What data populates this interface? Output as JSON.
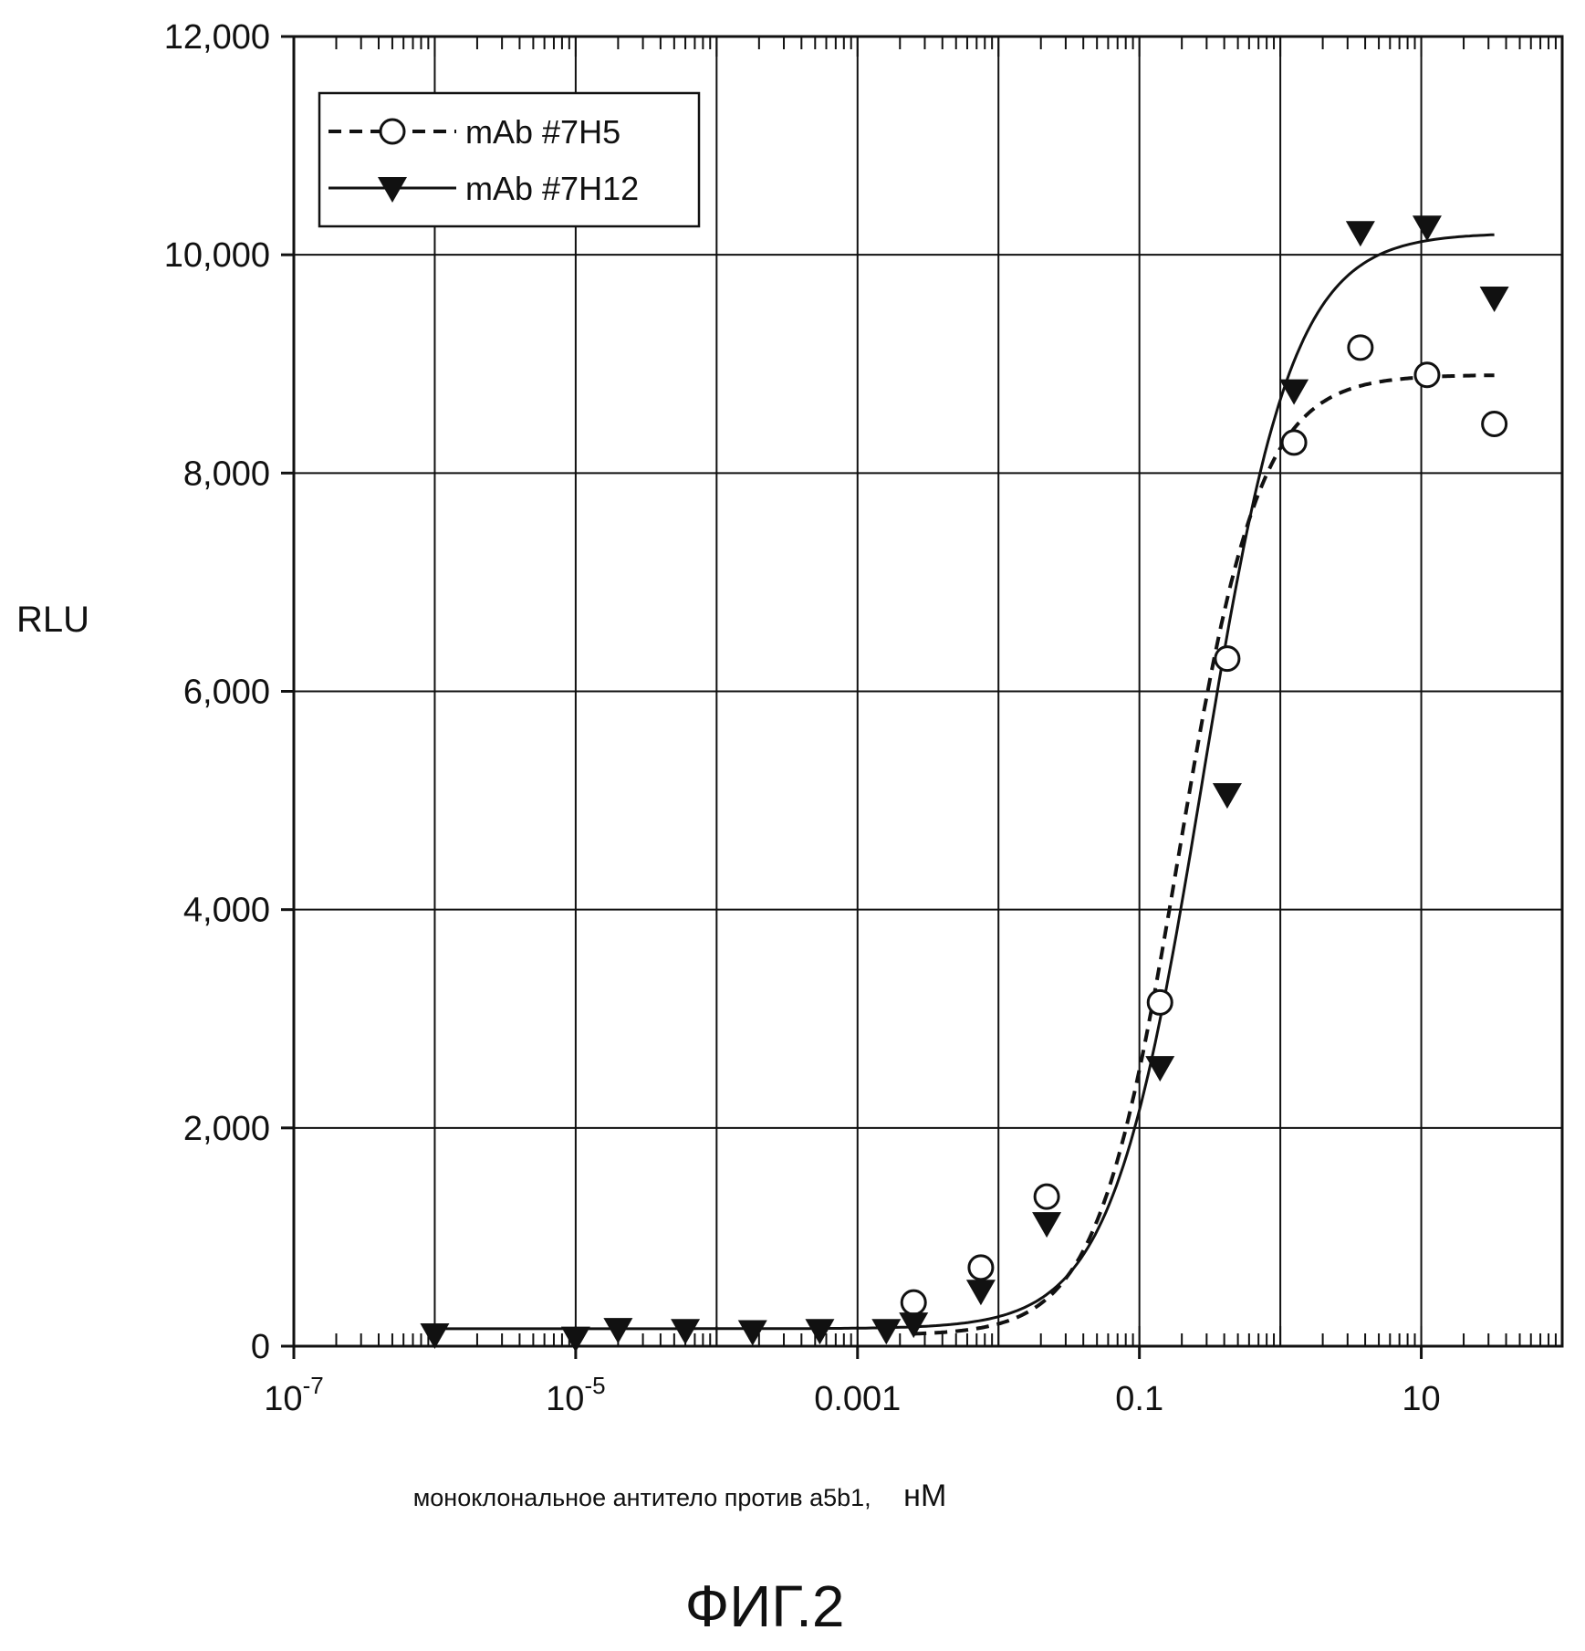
{
  "chart_data": {
    "type": "scatter",
    "ylabel": "RLU",
    "xlabel": "моноклональное антитело против a5b1,",
    "xlabel_unit": "нМ",
    "caption": "ФИГ.2",
    "xscale": "log",
    "xlim": [
      1e-07,
      100
    ],
    "ylim": [
      0,
      12000
    ],
    "grid": true,
    "legend_position": "top-left",
    "x_ticks": [
      1e-07,
      1e-05,
      0.001,
      0.1,
      10
    ],
    "x_tick_labels": [
      {
        "base": "10",
        "exp": "-7"
      },
      {
        "base": "10",
        "exp": "-5"
      },
      {
        "base": "0.001",
        "exp": ""
      },
      {
        "base": "0.1",
        "exp": ""
      },
      {
        "base": "10",
        "exp": ""
      }
    ],
    "y_ticks": [
      0,
      2000,
      4000,
      6000,
      8000,
      10000,
      12000
    ],
    "y_tick_labels": [
      "0",
      "2,000",
      "4,000",
      "6,000",
      "8,000",
      "10,000",
      "12,000"
    ],
    "series": [
      {
        "name": "mAb #7H5",
        "marker": "open-circle",
        "line": "dashed",
        "color": "#111111",
        "x": [
          0.0025,
          0.0075,
          0.022,
          0.14,
          0.42,
          1.25,
          3.7,
          11,
          33
        ],
        "y": [
          400,
          720,
          1370,
          3150,
          6300,
          8280,
          9150,
          8900,
          8450
        ],
        "fit": {
          "bottom": 100,
          "top": 8900,
          "ec50": 0.19,
          "hill": 1.5
        }
      },
      {
        "name": "mAb #7H12",
        "marker": "filled-triangle-down",
        "line": "solid",
        "color": "#111111",
        "x": [
          1e-06,
          1e-05,
          2e-05,
          6e-05,
          0.00018,
          0.00054,
          0.0016,
          0.0025,
          0.0075,
          0.022,
          0.14,
          0.42,
          1.25,
          3.7,
          11,
          33
        ],
        "y": [
          100,
          70,
          150,
          140,
          130,
          140,
          140,
          200,
          500,
          1120,
          2550,
          5050,
          8750,
          10200,
          10250,
          9600
        ],
        "fit": {
          "bottom": 160,
          "top": 10200,
          "ec50": 0.28,
          "hill": 1.35
        }
      }
    ]
  }
}
